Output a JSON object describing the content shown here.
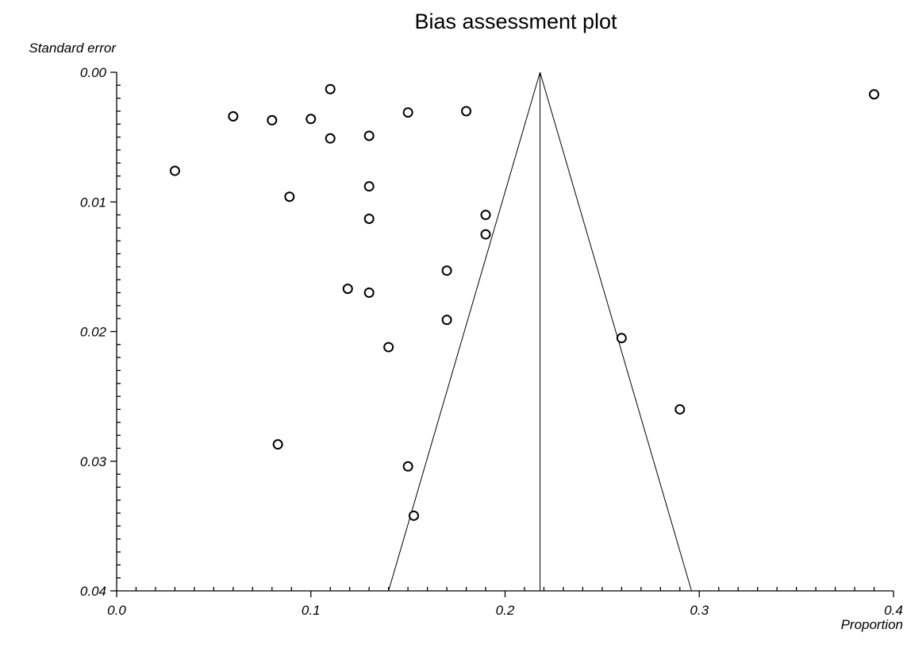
{
  "chart_data": {
    "type": "scatter",
    "title": "Bias assessment plot",
    "xlabel": "Proportion",
    "ylabel": "Standard error",
    "xlim": [
      0,
      0.4
    ],
    "ylim": [
      0,
      0.04
    ],
    "y_inverted": true,
    "grid": false,
    "x_ticks": [
      0.0,
      0.1,
      0.2,
      0.3,
      0.4
    ],
    "x_tick_labels": [
      "0.0",
      "0.1",
      "0.2",
      "0.3",
      "0.4"
    ],
    "y_ticks": [
      0.0,
      0.01,
      0.02,
      0.03,
      0.04
    ],
    "y_tick_labels": [
      "0.00",
      "0.01",
      "0.02",
      "0.03",
      "0.04"
    ],
    "pooled_estimate": 0.218,
    "funnel_bottom": [
      0.14,
      0.296
    ],
    "points": [
      {
        "x": 0.03,
        "y": 0.0076
      },
      {
        "x": 0.06,
        "y": 0.0034
      },
      {
        "x": 0.08,
        "y": 0.0037
      },
      {
        "x": 0.083,
        "y": 0.0287
      },
      {
        "x": 0.089,
        "y": 0.0096
      },
      {
        "x": 0.1,
        "y": 0.0036
      },
      {
        "x": 0.11,
        "y": 0.0013
      },
      {
        "x": 0.11,
        "y": 0.0051
      },
      {
        "x": 0.119,
        "y": 0.0167
      },
      {
        "x": 0.13,
        "y": 0.0049
      },
      {
        "x": 0.13,
        "y": 0.0088
      },
      {
        "x": 0.13,
        "y": 0.0113
      },
      {
        "x": 0.13,
        "y": 0.017
      },
      {
        "x": 0.14,
        "y": 0.0212
      },
      {
        "x": 0.15,
        "y": 0.0031
      },
      {
        "x": 0.15,
        "y": 0.0304
      },
      {
        "x": 0.153,
        "y": 0.0342
      },
      {
        "x": 0.17,
        "y": 0.0153
      },
      {
        "x": 0.17,
        "y": 0.0191
      },
      {
        "x": 0.18,
        "y": 0.003
      },
      {
        "x": 0.19,
        "y": 0.011
      },
      {
        "x": 0.19,
        "y": 0.0125
      },
      {
        "x": 0.26,
        "y": 0.0205
      },
      {
        "x": 0.29,
        "y": 0.026
      },
      {
        "x": 0.39,
        "y": 0.0017
      }
    ]
  }
}
